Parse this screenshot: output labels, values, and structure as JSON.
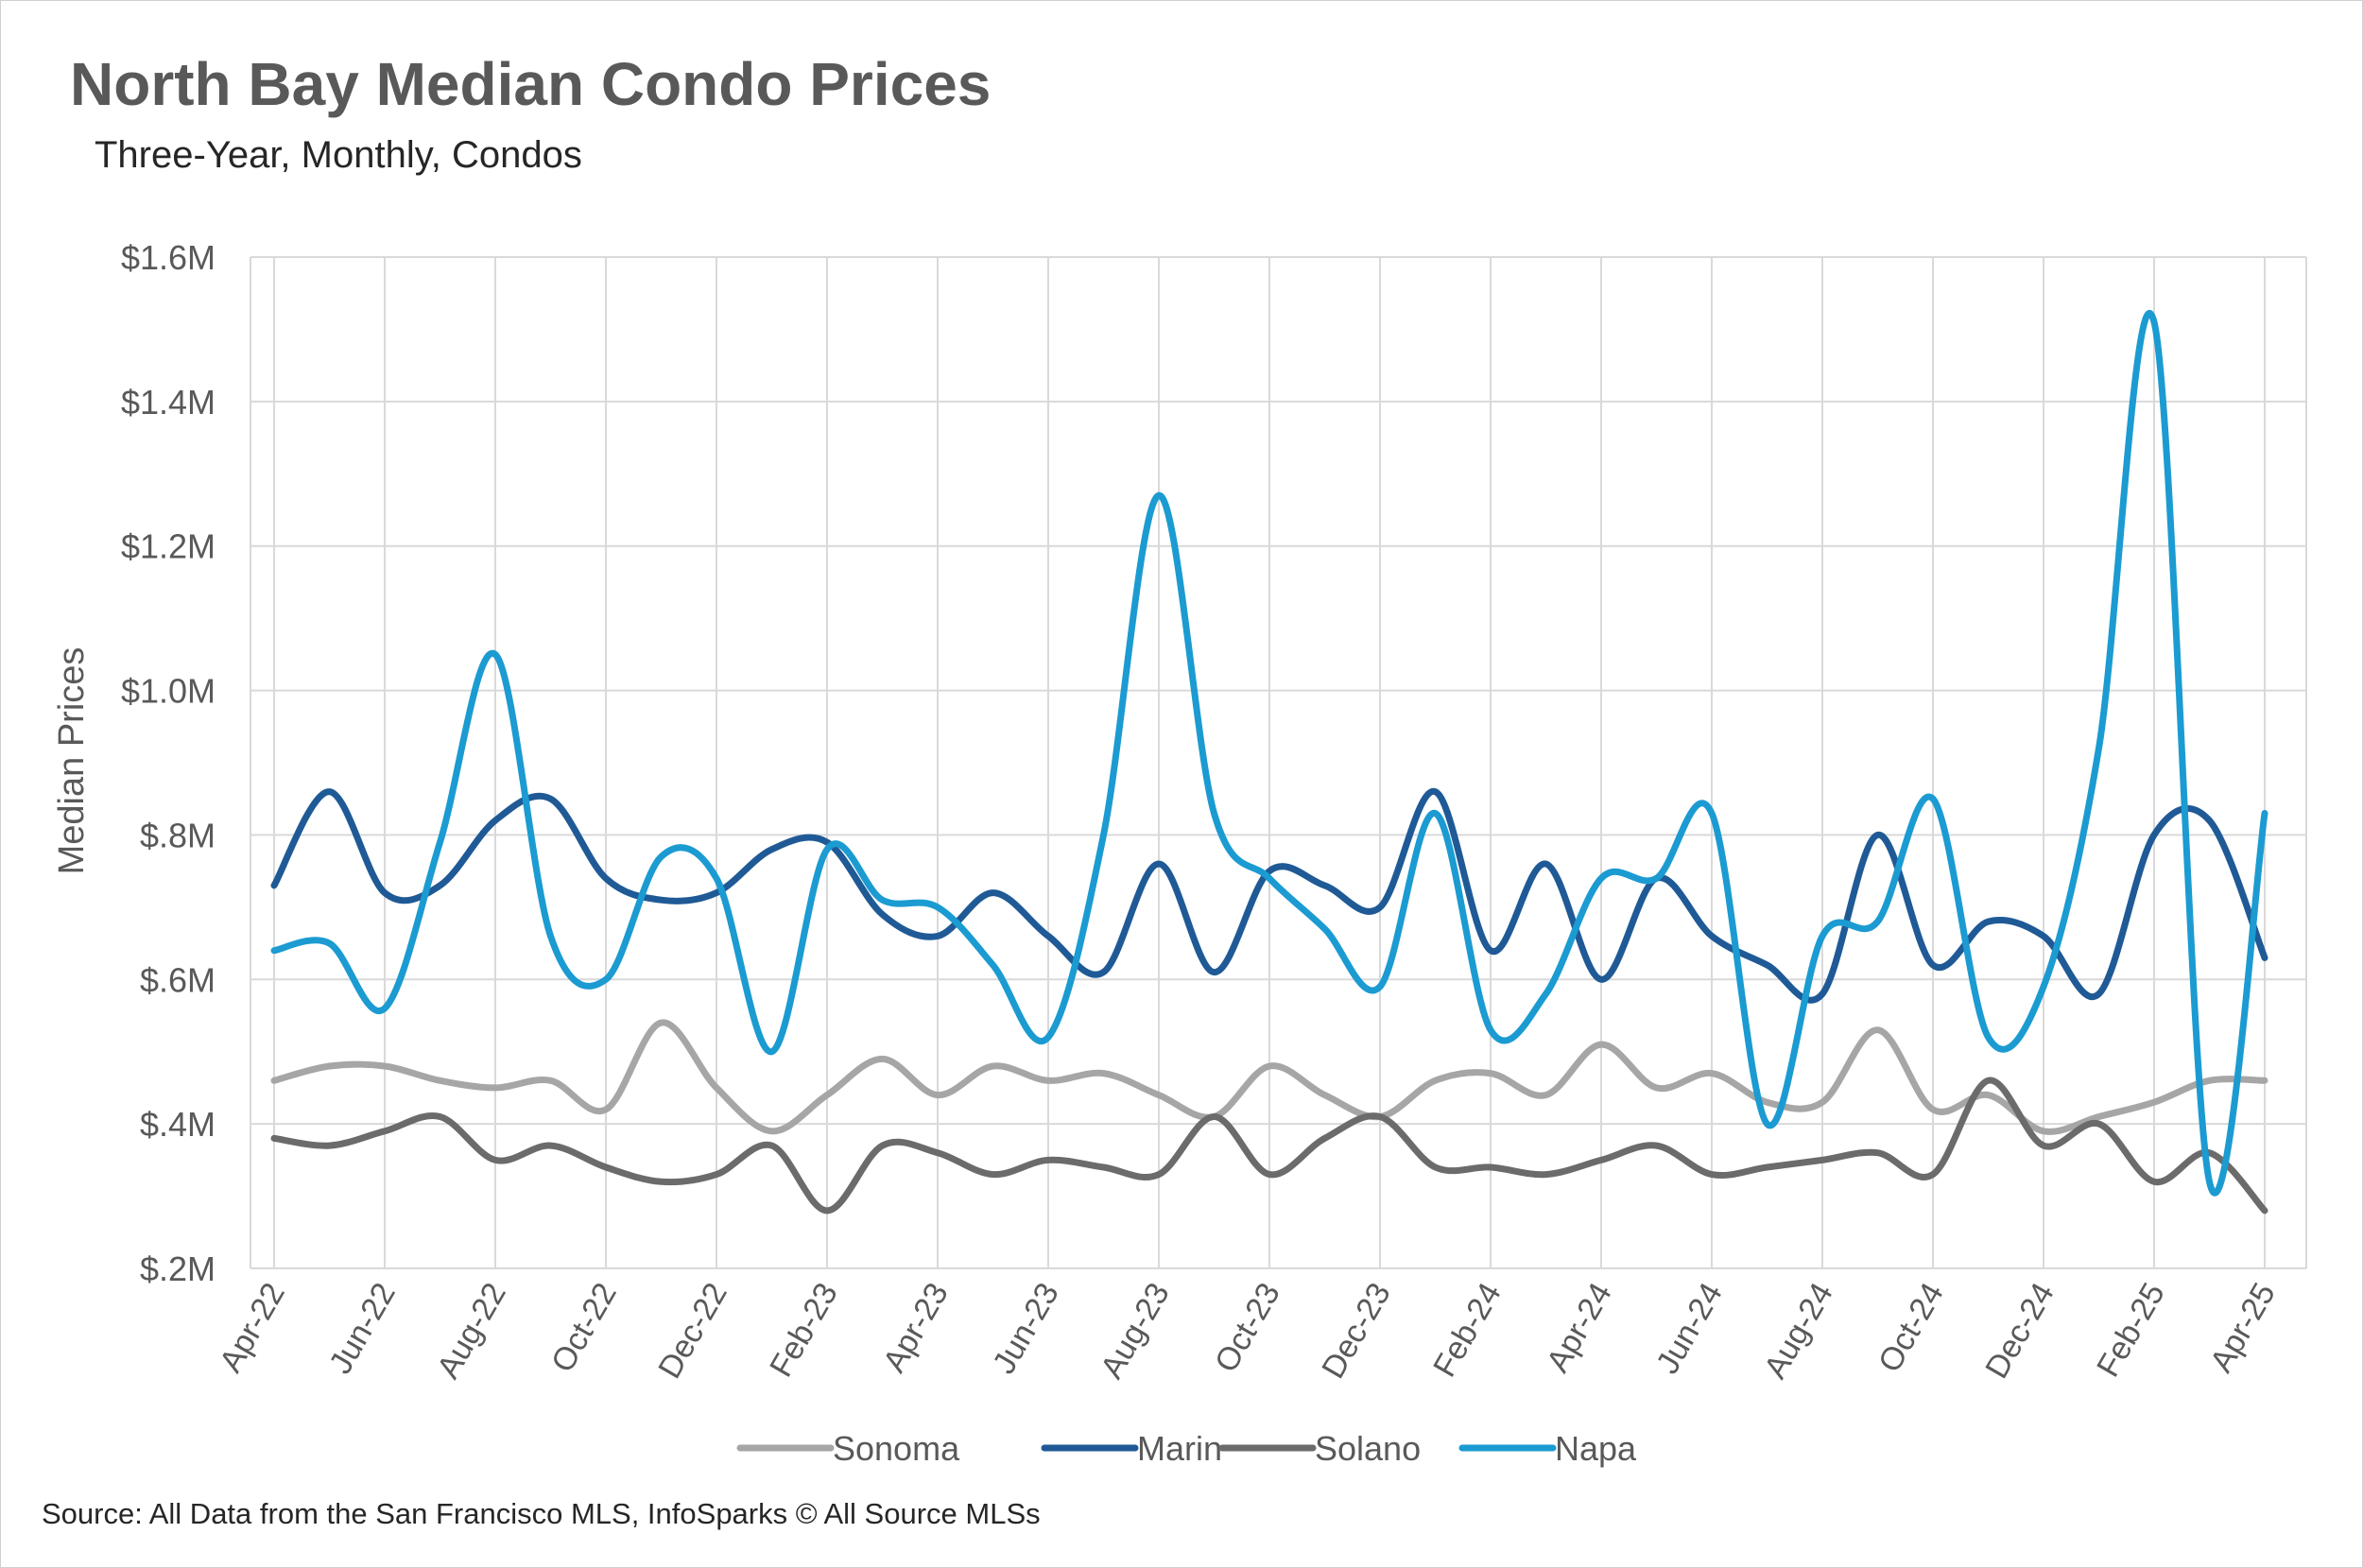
{
  "title": "North Bay Median Condo Prices",
  "subtitle": "Three-Year, Monthly, Condos",
  "source": "Source: All Data from the San Francisco MLS, InfoSparks © All Source MLSs",
  "chart_data": {
    "type": "line",
    "title": "North Bay Median Condo Prices",
    "subtitle": "Three-Year, Monthly, Condos",
    "xlabel": "",
    "ylabel": "Median Prices",
    "ylim": [
      0.2,
      1.6
    ],
    "yticks": [
      0.2,
      0.4,
      0.6,
      0.8,
      1.0,
      1.2,
      1.4,
      1.6
    ],
    "ytick_labels": [
      "$.2M",
      "$.4M",
      "$.6M",
      "$.8M",
      "$1.0M",
      "$1.2M",
      "$1.4M",
      "$1.6M"
    ],
    "x_tick_labels": [
      "Apr-22",
      "Jun-22",
      "Aug-22",
      "Oct-22",
      "Dec-22",
      "Feb-23",
      "Apr-23",
      "Jun-23",
      "Aug-23",
      "Oct-23",
      "Dec-23",
      "Feb-24",
      "Apr-24",
      "Jun-24",
      "Aug-24",
      "Oct-24",
      "Dec-24",
      "Feb-25",
      "Apr-25"
    ],
    "categories": [
      "Apr-22",
      "May-22",
      "Jun-22",
      "Jul-22",
      "Aug-22",
      "Sep-22",
      "Oct-22",
      "Nov-22",
      "Dec-22",
      "Jan-23",
      "Feb-23",
      "Mar-23",
      "Apr-23",
      "May-23",
      "Jun-23",
      "Jul-23",
      "Aug-23",
      "Sep-23",
      "Oct-23",
      "Nov-23",
      "Dec-23",
      "Jan-24",
      "Feb-24",
      "Mar-24",
      "Apr-24",
      "May-24",
      "Jun-24",
      "Jul-24",
      "Aug-24",
      "Sep-24",
      "Oct-24",
      "Nov-24",
      "Dec-24",
      "Jan-25",
      "Feb-25",
      "Mar-25",
      "Apr-25"
    ],
    "units": "$M",
    "grid": true,
    "legend_position": "bottom",
    "series": [
      {
        "name": "Sonoma",
        "color": "#a6a6a6",
        "values": [
          0.46,
          0.48,
          0.48,
          0.46,
          0.45,
          0.46,
          0.42,
          0.54,
          0.45,
          0.39,
          0.44,
          0.49,
          0.44,
          0.48,
          0.46,
          0.47,
          0.44,
          0.41,
          0.48,
          0.44,
          0.41,
          0.46,
          0.47,
          0.44,
          0.51,
          0.45,
          0.47,
          0.43,
          0.43,
          0.53,
          0.42,
          0.44,
          0.39,
          0.41,
          0.43,
          0.46,
          0.46
        ]
      },
      {
        "name": "Marin",
        "color": "#1f5a96",
        "values": [
          0.73,
          0.86,
          0.72,
          0.73,
          0.82,
          0.85,
          0.74,
          0.71,
          0.72,
          0.78,
          0.79,
          0.69,
          0.66,
          0.72,
          0.66,
          0.61,
          0.76,
          0.61,
          0.75,
          0.73,
          0.7,
          0.86,
          0.64,
          0.76,
          0.6,
          0.74,
          0.66,
          0.62,
          0.58,
          0.8,
          0.62,
          0.68,
          0.66,
          0.58,
          0.8,
          0.82,
          0.63
        ]
      },
      {
        "name": "Solano",
        "color": "#6b6b6b",
        "values": [
          0.38,
          0.37,
          0.39,
          0.41,
          0.35,
          0.37,
          0.34,
          0.32,
          0.33,
          0.37,
          0.28,
          0.37,
          0.36,
          0.33,
          0.35,
          0.34,
          0.33,
          0.41,
          0.33,
          0.38,
          0.41,
          0.34,
          0.34,
          0.33,
          0.35,
          0.37,
          0.33,
          0.34,
          0.35,
          0.36,
          0.33,
          0.46,
          0.37,
          0.4,
          0.32,
          0.36,
          0.28
        ]
      },
      {
        "name": "Napa",
        "color": "#1b9bd1",
        "values": [
          0.64,
          0.65,
          0.56,
          0.79,
          1.05,
          0.66,
          0.6,
          0.77,
          0.74,
          0.5,
          0.78,
          0.71,
          0.7,
          0.62,
          0.52,
          0.8,
          1.27,
          0.83,
          0.74,
          0.67,
          0.59,
          0.83,
          0.53,
          0.58,
          0.74,
          0.74,
          0.83,
          0.4,
          0.66,
          0.68,
          0.85,
          0.52,
          0.59,
          0.92,
          1.51,
          0.32,
          0.83
        ]
      }
    ]
  }
}
